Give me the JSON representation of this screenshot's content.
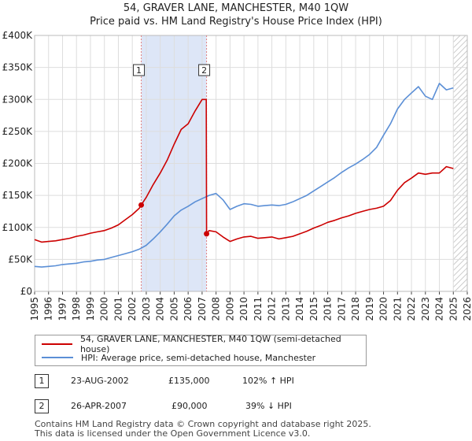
{
  "header": {
    "title": "54, GRAVER LANE, MANCHESTER, M40 1QW",
    "subtitle": "Price paid vs. HM Land Registry's House Price Index (HPI)"
  },
  "legend": {
    "red_label": "54, GRAVER LANE, MANCHESTER, M40 1QW (semi-detached house)",
    "blue_label": "HPI: Average price, semi-detached house, Manchester"
  },
  "transactions": [
    {
      "num": "1",
      "date": "23-AUG-2002",
      "price": "£135,000",
      "hpi": "102% ↑ HPI"
    },
    {
      "num": "2",
      "date": "26-APR-2007",
      "price": "£90,000",
      "hpi": "39% ↓ HPI"
    }
  ],
  "footer": {
    "line1": "Contains HM Land Registry data © Crown copyright and database right 2025.",
    "line2": "This data is licensed under the Open Government Licence v3.0."
  },
  "colors": {
    "red": "#cc0000",
    "blue": "#5b8fd6",
    "shade": "#dde6f7",
    "grid": "#dddddd",
    "marker_line": "#e08080"
  },
  "chart_data": {
    "type": "line",
    "xlim": [
      1995,
      2026
    ],
    "ylim": [
      0,
      400000
    ],
    "x_ticks": [
      "1995",
      "1996",
      "1997",
      "1998",
      "1999",
      "2000",
      "2001",
      "2002",
      "2003",
      "2004",
      "2005",
      "2006",
      "2007",
      "2008",
      "2009",
      "2010",
      "2011",
      "2012",
      "2013",
      "2014",
      "2015",
      "2016",
      "2017",
      "2018",
      "2019",
      "2020",
      "2021",
      "2022",
      "2023",
      "2024",
      "2025",
      "2026"
    ],
    "y_ticks": [
      {
        "value": 0,
        "label": "£0"
      },
      {
        "value": 50000,
        "label": "£50K"
      },
      {
        "value": 100000,
        "label": "£100K"
      },
      {
        "value": 150000,
        "label": "£150K"
      },
      {
        "value": 200000,
        "label": "£200K"
      },
      {
        "value": 250000,
        "label": "£250K"
      },
      {
        "value": 300000,
        "label": "£300K"
      },
      {
        "value": 350000,
        "label": "£350K"
      },
      {
        "value": 400000,
        "label": "£400K"
      }
    ],
    "shaded_ranges": [
      [
        2002.64,
        2007.32
      ]
    ],
    "hatched_from": 2025.0,
    "sales": [
      {
        "label": "1",
        "x": 2002.64,
        "y": 135000
      },
      {
        "label": "2",
        "x": 2007.32,
        "y": 90000
      }
    ],
    "series": [
      {
        "name": "54, GRAVER LANE, MANCHESTER, M40 1QW (semi-detached house)",
        "color": "#cc0000",
        "x": [
          1995.0,
          1995.5,
          1996.0,
          1996.5,
          1997.0,
          1997.5,
          1998.0,
          1998.5,
          1999.0,
          1999.5,
          2000.0,
          2000.5,
          2001.0,
          2001.5,
          2002.0,
          2002.5,
          2002.64,
          2003.0,
          2003.5,
          2004.0,
          2004.5,
          2005.0,
          2005.5,
          2006.0,
          2006.5,
          2007.0,
          2007.3,
          2007.32,
          2007.5,
          2008.0,
          2008.5,
          2009.0,
          2009.5,
          2010.0,
          2010.5,
          2011.0,
          2011.5,
          2012.0,
          2012.5,
          2013.0,
          2013.5,
          2014.0,
          2014.5,
          2015.0,
          2015.5,
          2016.0,
          2016.5,
          2017.0,
          2017.5,
          2018.0,
          2018.5,
          2019.0,
          2019.5,
          2020.0,
          2020.5,
          2021.0,
          2021.5,
          2022.0,
          2022.5,
          2023.0,
          2023.5,
          2024.0,
          2024.5,
          2025.0
        ],
        "y": [
          81000,
          77000,
          78000,
          79000,
          81000,
          83000,
          86000,
          88000,
          91000,
          93000,
          95000,
          99000,
          104000,
          112000,
          120000,
          130000,
          135000,
          147000,
          167000,
          185000,
          205000,
          230000,
          253000,
          262000,
          282000,
          300000,
          300000,
          90000,
          95000,
          93000,
          85000,
          78000,
          82000,
          85000,
          86000,
          83000,
          84000,
          85000,
          82000,
          84000,
          86000,
          90000,
          94000,
          99000,
          103000,
          108000,
          111000,
          115000,
          118000,
          122000,
          125000,
          128000,
          130000,
          133000,
          142000,
          158000,
          170000,
          177000,
          185000,
          183000,
          185000,
          185000,
          195000,
          192000
        ]
      },
      {
        "name": "HPI: Average price, semi-detached house, Manchester",
        "color": "#5b8fd6",
        "x": [
          1995.0,
          1995.5,
          1996.0,
          1996.5,
          1997.0,
          1997.5,
          1998.0,
          1998.5,
          1999.0,
          1999.5,
          2000.0,
          2000.5,
          2001.0,
          2001.5,
          2002.0,
          2002.5,
          2003.0,
          2003.5,
          2004.0,
          2004.5,
          2005.0,
          2005.5,
          2006.0,
          2006.5,
          2007.0,
          2007.5,
          2008.0,
          2008.5,
          2009.0,
          2009.5,
          2010.0,
          2010.5,
          2011.0,
          2011.5,
          2012.0,
          2012.5,
          2013.0,
          2013.5,
          2014.0,
          2014.5,
          2015.0,
          2015.5,
          2016.0,
          2016.5,
          2017.0,
          2017.5,
          2018.0,
          2018.5,
          2019.0,
          2019.5,
          2020.0,
          2020.5,
          2021.0,
          2021.5,
          2022.0,
          2022.5,
          2023.0,
          2023.5,
          2024.0,
          2024.5,
          2025.0
        ],
        "y": [
          39000,
          38000,
          39000,
          40000,
          42000,
          43000,
          44000,
          46000,
          47000,
          49000,
          50000,
          53000,
          56000,
          59000,
          62000,
          66000,
          72000,
          82000,
          93000,
          105000,
          118000,
          127000,
          133000,
          140000,
          145000,
          150000,
          153000,
          143000,
          128000,
          133000,
          137000,
          136000,
          133000,
          134000,
          135000,
          134000,
          136000,
          140000,
          145000,
          150000,
          157000,
          164000,
          171000,
          178000,
          186000,
          193000,
          199000,
          206000,
          214000,
          225000,
          244000,
          262000,
          285000,
          300000,
          310000,
          320000,
          305000,
          300000,
          325000,
          315000,
          318000
        ]
      }
    ]
  }
}
